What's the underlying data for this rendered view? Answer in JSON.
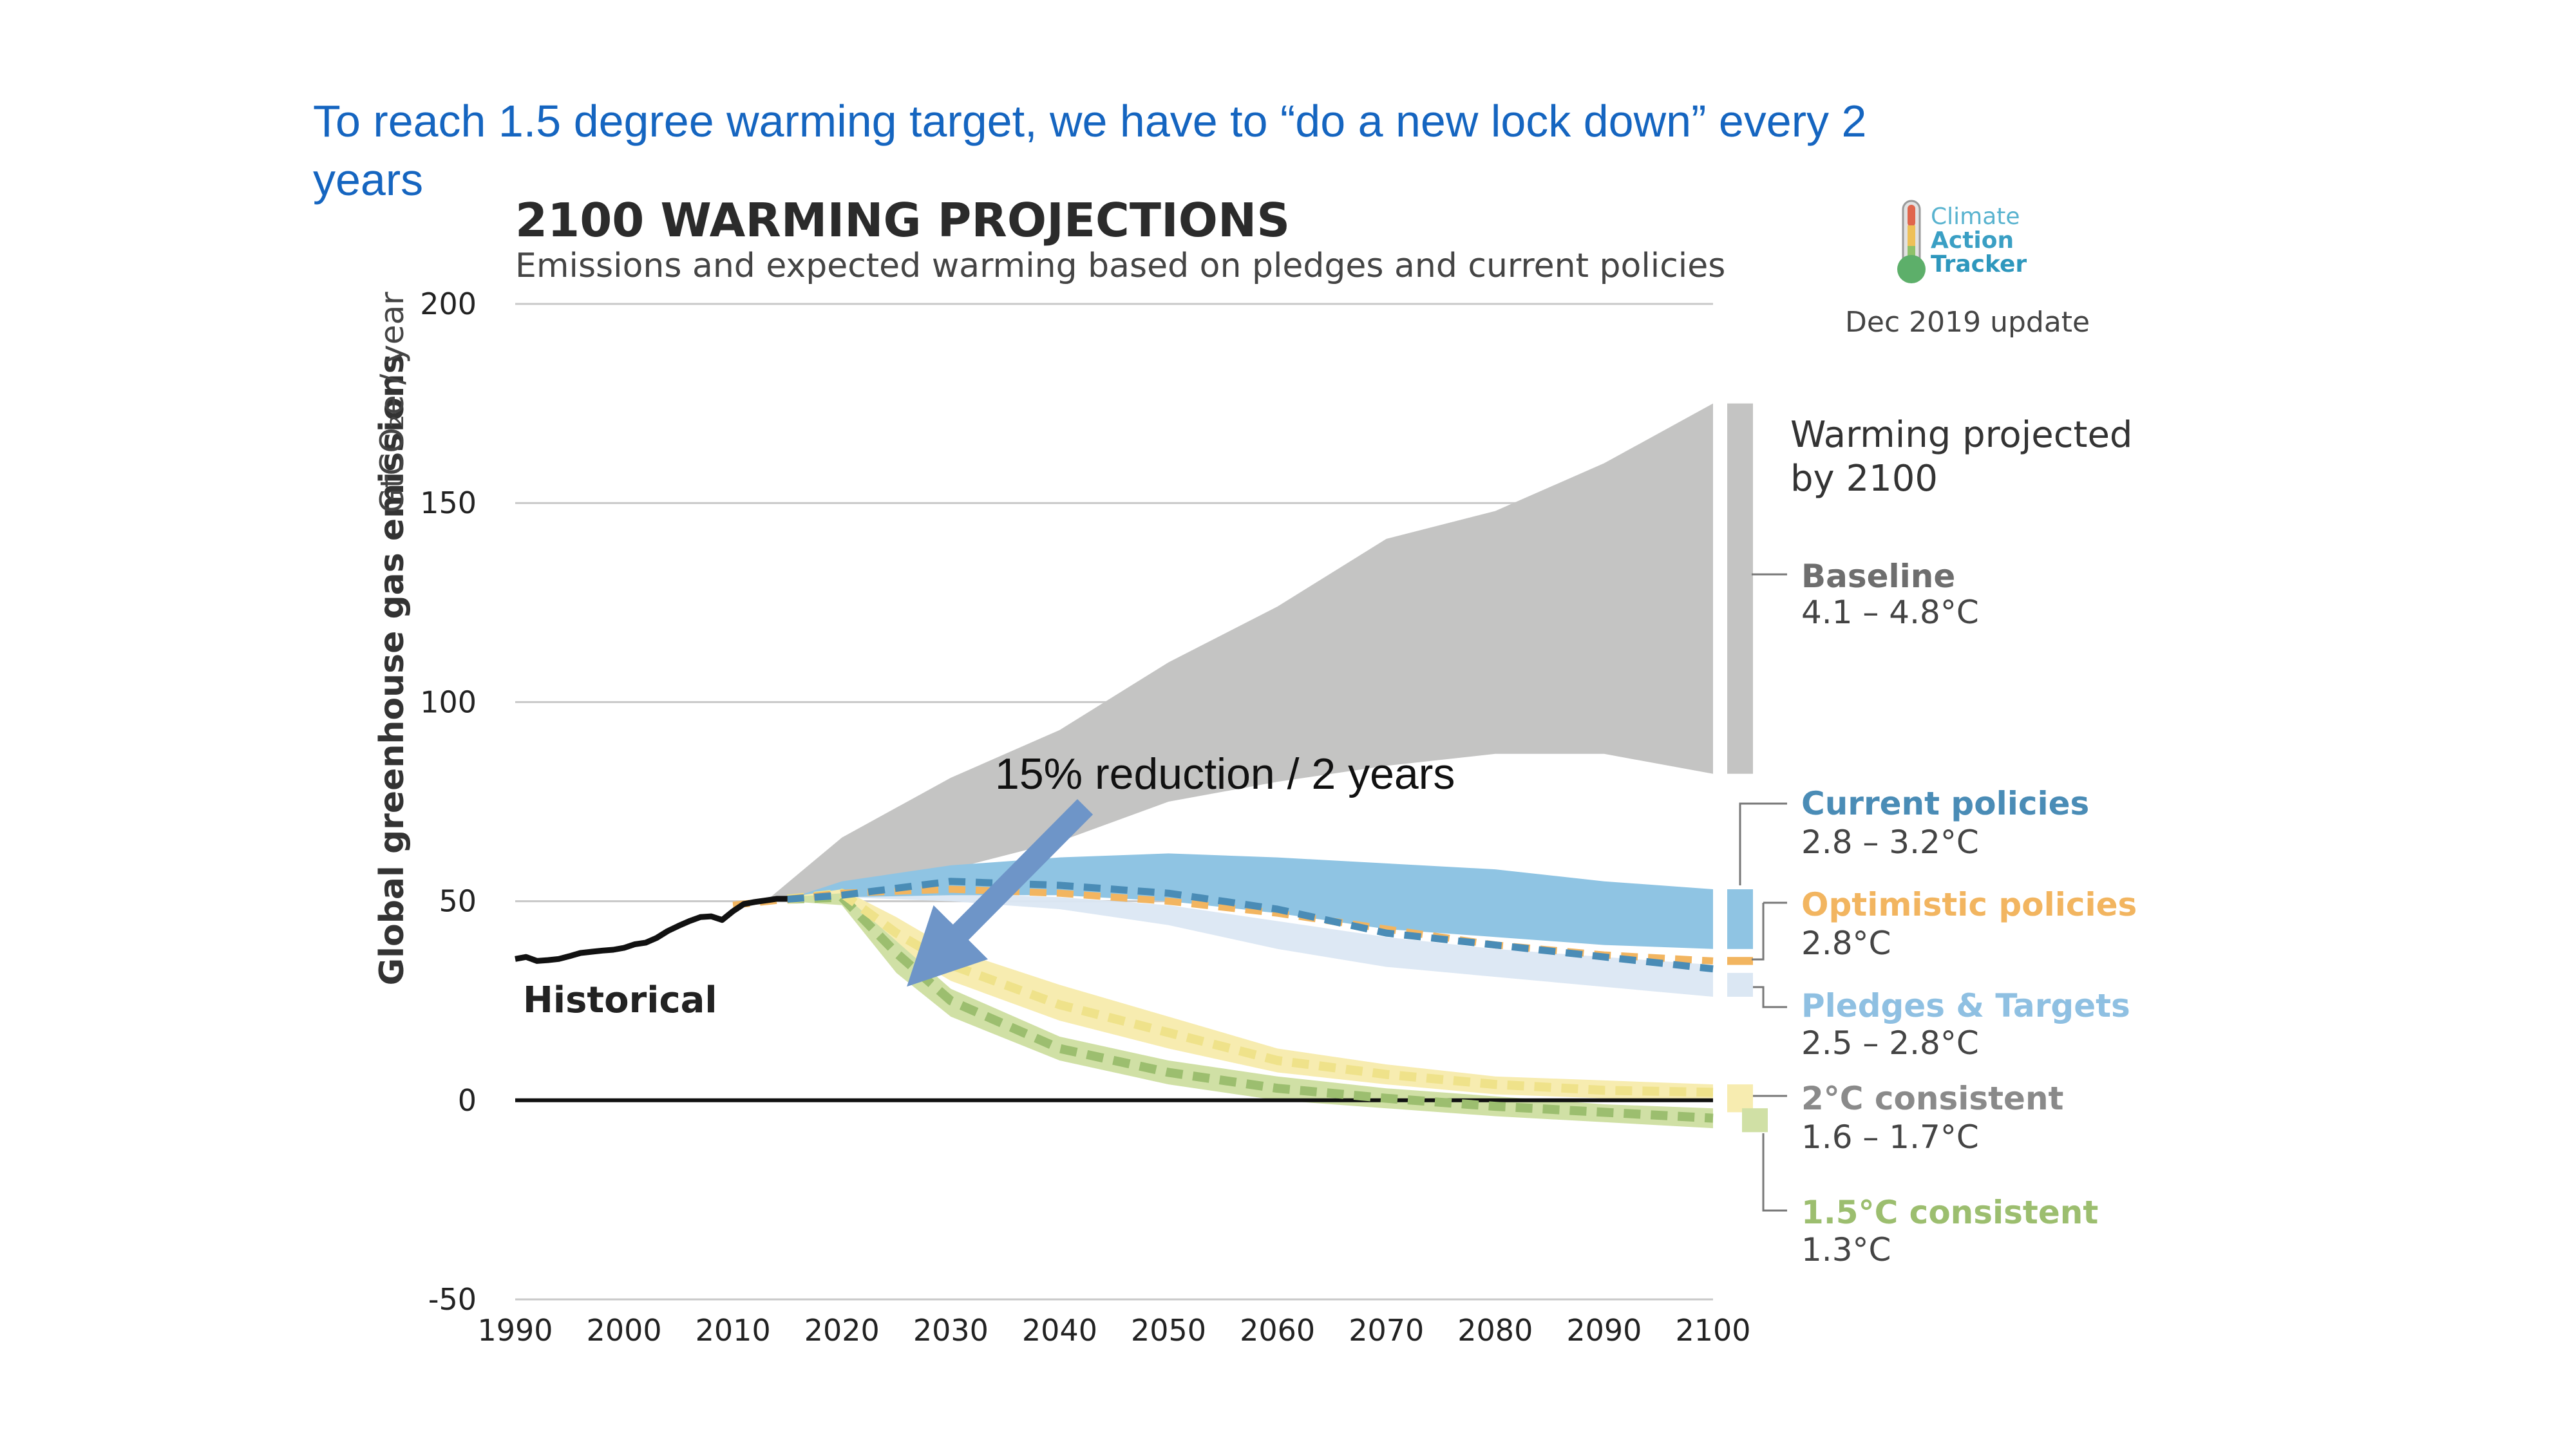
{
  "slide": {
    "headline_line1": "To reach 1.5 degree warming target, we have to “do a new lock down” every 2",
    "headline_line2": "years",
    "annotation": "15% reduction / 2 years"
  },
  "logo": {
    "word1": "Climate",
    "word2": "Action",
    "word3": "Tracker",
    "update": "Dec 2019 update"
  },
  "colors": {
    "headline": "#1565c0",
    "baseline": "#c4c4c3",
    "current": "#8fc4e3",
    "current_line": "#4a8cb6",
    "optimistic": "#f2b560",
    "pledges": "#dbe7f3",
    "pledges_label": "#8fc0e2",
    "two_deg": "#f7ecb0",
    "two_deg_line": "#efe28a",
    "onefive": "#d0e0a5",
    "onefive_line": "#9cbe6f",
    "arrow": "#6e95c8"
  },
  "chart_data": {
    "type": "area",
    "title": "2100 WARMING PROJECTIONS",
    "subtitle": "Emissions and expected warming based on pledges and current policies",
    "ylabel": "Global greenhouse gas emissions",
    "yunit": "GtCO₂e / year",
    "xlim": [
      1990,
      2100
    ],
    "ylim": [
      -50,
      200
    ],
    "xticks": [
      "1990",
      "2000",
      "2010",
      "2020",
      "2030",
      "2040",
      "2050",
      "2060",
      "2070",
      "2080",
      "2090",
      "2100"
    ],
    "yticks": [
      "200",
      "150",
      "100",
      "50",
      "0",
      "-50"
    ],
    "historical": {
      "label": "Historical",
      "x": [
        1990,
        1991,
        1992,
        1993,
        1994,
        1995,
        1996,
        1997,
        1998,
        1999,
        2000,
        2001,
        2002,
        2003,
        2004,
        2005,
        2006,
        2007,
        2008,
        2009,
        2010,
        2011,
        2012,
        2013,
        2014,
        2015
      ],
      "y": [
        35.5,
        36,
        35,
        35.2,
        35.5,
        36.2,
        37,
        37.3,
        37.6,
        37.8,
        38.3,
        39.2,
        39.6,
        40.8,
        42.5,
        43.8,
        45,
        46,
        46.2,
        45.3,
        47.5,
        49.3,
        49.8,
        50.2,
        50.6,
        50.6
      ]
    },
    "bands": [
      {
        "name": "Baseline",
        "warming": "4.1 – 4.8°C",
        "x": [
          2013,
          2020,
          2030,
          2040,
          2050,
          2060,
          2070,
          2080,
          2090,
          2100
        ],
        "upper": [
          50,
          66,
          81,
          93,
          110,
          124,
          141,
          148,
          160,
          175
        ],
        "lower": [
          50,
          52,
          58,
          65,
          75,
          80,
          84,
          87,
          87,
          82
        ]
      },
      {
        "name": "Current policies",
        "warming": "2.8 – 3.2°C",
        "x": [
          2015,
          2020,
          2030,
          2040,
          2050,
          2060,
          2070,
          2080,
          2090,
          2100
        ],
        "upper": [
          50.5,
          55,
          59,
          61,
          62,
          61,
          59.5,
          58,
          55,
          53
        ],
        "lower": [
          50.5,
          51,
          51.5,
          51.5,
          50,
          47,
          43,
          41,
          39,
          38
        ]
      },
      {
        "name": "Pledges & Targets",
        "warming": "2.5 – 2.8°C",
        "x": [
          2015,
          2020,
          2030,
          2040,
          2050,
          2060,
          2070,
          2080,
          2090,
          2100
        ],
        "upper": [
          50.5,
          52,
          52,
          51,
          49,
          45,
          41,
          38,
          36,
          34
        ],
        "lower": [
          50.5,
          51,
          50,
          48,
          44,
          38,
          33.5,
          31,
          28.5,
          26
        ]
      },
      {
        "name": "2°C consistent",
        "warming": "1.6 – 1.7°C",
        "x": [
          2015,
          2020,
          2025,
          2030,
          2040,
          2050,
          2060,
          2070,
          2080,
          2090,
          2100
        ],
        "upper": [
          51,
          53,
          46,
          38,
          29,
          21,
          13,
          9,
          6,
          5,
          4
        ],
        "lower": [
          50,
          50,
          38,
          30,
          20,
          13,
          7,
          4,
          1.5,
          0.5,
          0
        ]
      },
      {
        "name": "1.5°C consistent",
        "warming": "1.3°C",
        "x": [
          2015,
          2020,
          2025,
          2030,
          2040,
          2050,
          2060,
          2070,
          2080,
          2090,
          2100
        ],
        "upper": [
          51,
          52,
          40,
          28,
          16,
          10,
          6,
          3,
          1,
          -1,
          -2
        ],
        "lower": [
          50,
          49,
          32,
          21,
          10,
          4,
          0,
          -2,
          -4,
          -5.5,
          -7
        ]
      }
    ],
    "lines": [
      {
        "name": "Current policies",
        "x": [
          2015,
          2020,
          2030,
          2040,
          2050,
          2060,
          2070,
          2080,
          2090,
          2100
        ],
        "y": [
          50.5,
          51.5,
          55,
          54,
          52,
          48,
          42,
          39,
          36,
          33
        ]
      },
      {
        "name": "Optimistic policies",
        "warming": "2.8°C",
        "x": [
          2010,
          2015,
          2020,
          2030,
          2040,
          2050,
          2060,
          2070,
          2080,
          2090,
          2100
        ],
        "y": [
          49,
          50.5,
          52,
          53,
          52,
          50,
          47,
          43,
          39,
          36.5,
          35
        ]
      },
      {
        "name": "2°C consistent",
        "x": [
          2015,
          2020,
          2025,
          2030,
          2040,
          2050,
          2060,
          2070,
          2080,
          2090,
          2100
        ],
        "y": [
          50.5,
          52,
          42,
          34,
          24,
          17,
          10,
          6.5,
          4,
          2.5,
          2
        ]
      },
      {
        "name": "1.5°C consistent",
        "x": [
          2015,
          2020,
          2025,
          2030,
          2040,
          2050,
          2060,
          2070,
          2080,
          2090,
          2100
        ],
        "y": [
          50.5,
          51,
          37,
          25,
          13,
          7,
          3,
          0.5,
          -1.5,
          -3,
          -4.5
        ]
      }
    ],
    "zero_line": 0,
    "warming_bars": [
      {
        "name": "Baseline",
        "range": [
          82,
          175
        ]
      },
      {
        "name": "Current policies",
        "range": [
          38,
          53
        ]
      },
      {
        "name": "Optimistic policies",
        "range": [
          34,
          36
        ]
      },
      {
        "name": "Pledges & Targets",
        "range": [
          26,
          32
        ]
      },
      {
        "name": "2°C consistent",
        "range": [
          -3,
          4
        ]
      },
      {
        "name": "1.5°C consistent",
        "range": [
          -8,
          -2
        ]
      }
    ],
    "legend_heading_line1": "Warming projected",
    "legend_heading_line2": "by 2100",
    "grid": true
  }
}
